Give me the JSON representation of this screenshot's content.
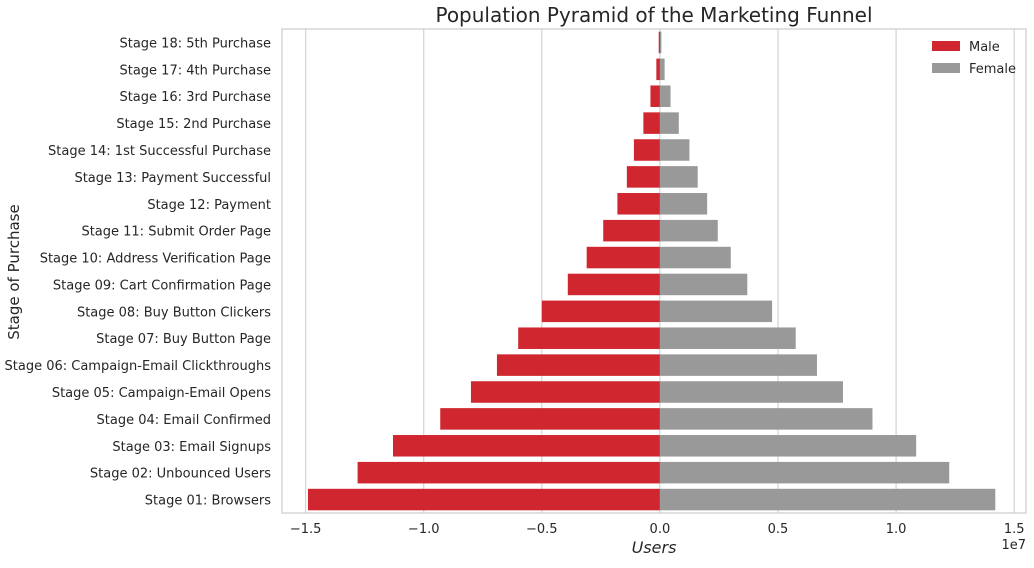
{
  "chart_data": {
    "type": "bar",
    "orientation": "horizontal",
    "title": "Population Pyramid of the Marketing Funnel",
    "xlabel": "Users",
    "ylabel": "Stage of Purchase",
    "x_offset_label": "1e7",
    "xlim": [
      -16000000,
      15500000
    ],
    "x_ticks": [
      -15000000,
      -10000000,
      -5000000,
      0,
      5000000,
      10000000,
      15000000
    ],
    "x_tick_labels": [
      "−1.5",
      "−1.0",
      "−0.5",
      "0.0",
      "0.5",
      "1.0",
      "1.5"
    ],
    "grid": "vertical",
    "legend_position": "top-right",
    "categories": [
      "Stage 18: 5th Purchase",
      "Stage 17: 4th Purchase",
      "Stage 16: 3rd Purchase",
      "Stage 15: 2nd Purchase",
      "Stage 14: 1st Successful Purchase",
      "Stage 13: Payment Successful",
      "Stage 12: Payment",
      "Stage 11: Submit Order Page",
      "Stage 10: Address Verification Page",
      "Stage 09: Cart Confirmation Page",
      "Stage 08: Buy Button Clickers",
      "Stage 07: Buy Button Page",
      "Stage 06: Campaign-Email Clickthroughs",
      "Stage 05: Campaign-Email Opens",
      "Stage 04: Email Confirmed",
      "Stage 03: Email Signups",
      "Stage 02: Unbounced Users",
      "Stage 01: Browsers"
    ],
    "series": [
      {
        "name": "Male",
        "color": "#d0262f",
        "values": [
          -50000,
          -150000,
          -400000,
          -700000,
          -1100000,
          -1400000,
          -1800000,
          -2400000,
          -3100000,
          -3900000,
          -5000000,
          -6000000,
          -6900000,
          -8000000,
          -9300000,
          -11300000,
          -12800000,
          -14900000
        ]
      },
      {
        "name": "Female",
        "color": "#999999",
        "values": [
          40000,
          200000,
          450000,
          800000,
          1250000,
          1600000,
          2000000,
          2450000,
          3000000,
          3700000,
          4750000,
          5750000,
          6650000,
          7750000,
          9000000,
          10850000,
          12250000,
          14200000
        ]
      }
    ]
  }
}
